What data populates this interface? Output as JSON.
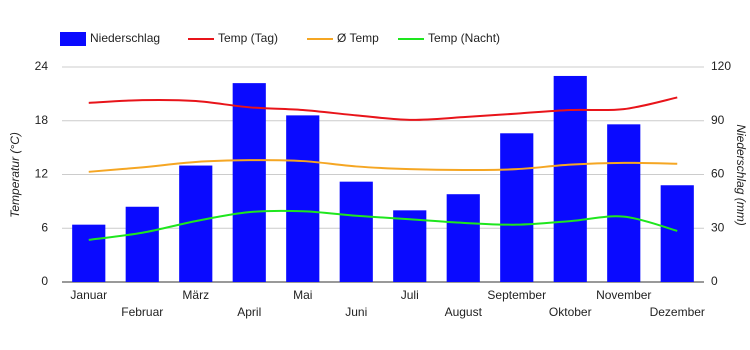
{
  "chart_data": {
    "type": "combo",
    "categories": [
      "Januar",
      "Februar",
      "März",
      "April",
      "Mai",
      "Juni",
      "Juli",
      "August",
      "September",
      "Oktober",
      "November",
      "Dezember"
    ],
    "series": [
      {
        "name": "Niederschlag",
        "type": "bar",
        "axis": "y2",
        "color": "#0a0aff",
        "values": [
          32,
          42,
          65,
          111,
          93,
          56,
          40,
          49,
          83,
          115,
          88,
          54
        ]
      },
      {
        "name": "Temp (Tag)",
        "type": "line",
        "color": "#e8141a",
        "values": [
          20.0,
          20.3,
          20.2,
          19.5,
          19.2,
          18.6,
          18.1,
          18.4,
          18.8,
          19.2,
          19.3,
          20.6
        ]
      },
      {
        "name": "Ø Temp",
        "type": "line",
        "color": "#f5a623",
        "values": [
          12.3,
          12.8,
          13.4,
          13.6,
          13.5,
          12.9,
          12.6,
          12.5,
          12.6,
          13.1,
          13.3,
          13.2
        ]
      },
      {
        "name": "Temp (Nacht)",
        "type": "line",
        "color": "#1ee61e",
        "values": [
          4.7,
          5.5,
          6.8,
          7.8,
          7.9,
          7.4,
          7.0,
          6.6,
          6.4,
          6.8,
          7.3,
          5.7
        ]
      }
    ],
    "y_label": "Temperatur (°C)",
    "y2_label": "Niederschlag (mm)",
    "ylim": [
      0,
      24
    ],
    "yticks": [
      0,
      6,
      12,
      18,
      24
    ],
    "y2lim": [
      0,
      120
    ],
    "y2ticks": [
      0,
      30,
      60,
      90,
      120
    ],
    "grid": true,
    "legend": "top"
  }
}
